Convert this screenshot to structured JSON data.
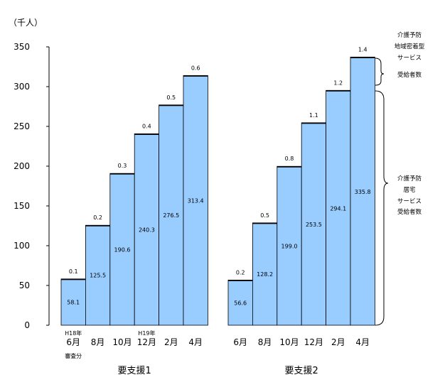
{
  "chart_data": {
    "type": "bar",
    "stacked": true,
    "unit_label": "（千人）",
    "ylim": [
      0,
      350
    ],
    "yticks": [
      "0",
      "50",
      "100",
      "150",
      "200",
      "250",
      "300",
      "350"
    ],
    "grid": false,
    "bar_color": "#99ccff",
    "top_color": "#000000",
    "groups": [
      {
        "name": "要支援1",
        "categories": [
          "6月",
          "8月",
          "10月",
          "12月",
          "2月",
          "4月"
        ],
        "category_notes": [
          {
            "index": 0,
            "above": "H18年",
            "below": "審査分"
          },
          {
            "index": 3,
            "above": "H19年"
          }
        ],
        "series": [
          {
            "values": [
              58.1,
              125.5,
              190.6,
              240.3,
              276.5,
              313.4
            ]
          },
          {
            "values": [
              0.1,
              0.2,
              0.3,
              0.4,
              0.5,
              0.6
            ]
          }
        ],
        "value_labels": [
          "58.1",
          "125.5",
          "190.6",
          "240.3",
          "276.5",
          "313.4"
        ],
        "top_labels": [
          "0.1",
          "0.2",
          "0.3",
          "0.4",
          "0.5",
          "0.6"
        ]
      },
      {
        "name": "要支援2",
        "categories": [
          "6月",
          "8月",
          "10月",
          "12月",
          "2月",
          "4月"
        ],
        "category_notes": [],
        "series": [
          {
            "values": [
              56.6,
              128.2,
              199.0,
              253.5,
              294.1,
              335.8
            ]
          },
          {
            "values": [
              0.2,
              0.5,
              0.8,
              1.1,
              1.2,
              1.4
            ]
          }
        ],
        "value_labels": [
          "56.6",
          "128.2",
          "199.0",
          "253.5",
          "294.1",
          "335.8"
        ],
        "top_labels": [
          "0.2",
          "0.5",
          "0.8",
          "1.1",
          "1.2",
          "1.4"
        ]
      }
    ],
    "annotations": {
      "top": [
        "介護予防",
        "地域密着型",
        "サービス",
        "",
        "受給者数"
      ],
      "main": [
        "介護予防",
        "居宅",
        "サービス",
        "受給者数"
      ]
    }
  }
}
